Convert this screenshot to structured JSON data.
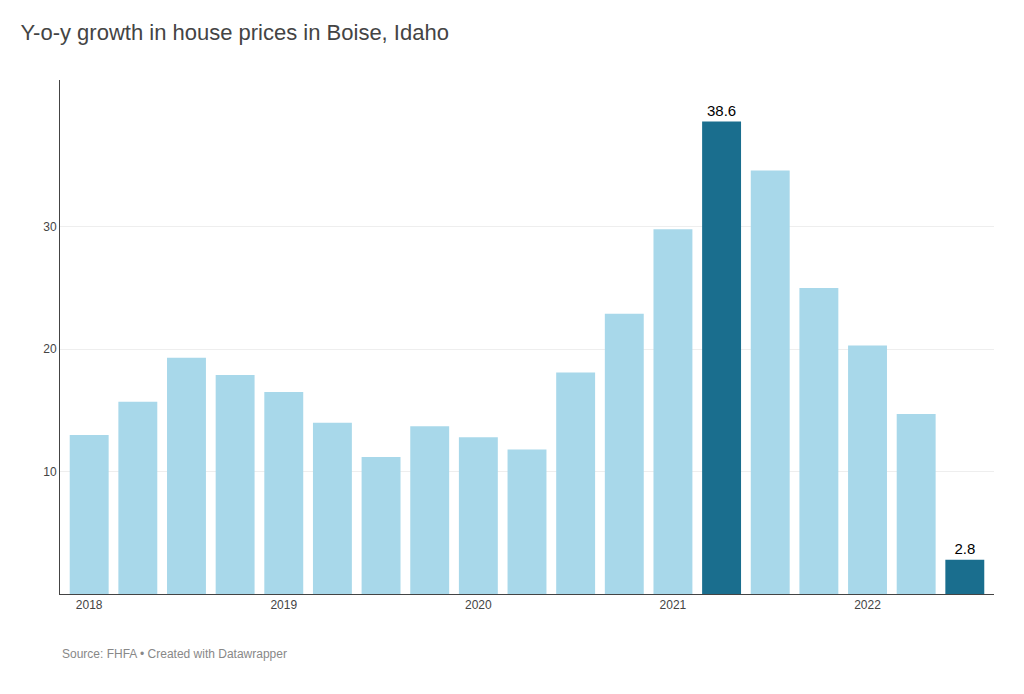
{
  "chart_data": {
    "type": "bar",
    "title": "Y-o-y growth in house prices in Boise, Idaho",
    "annotations": [
      "Source: FHFA • Created with Datawrapper"
    ],
    "categories": [
      "2018",
      null,
      null,
      null,
      "2019",
      null,
      null,
      null,
      "2020",
      null,
      null,
      null,
      "2021",
      null,
      null,
      null,
      "2022",
      null,
      null
    ],
    "values": [
      13.0,
      15.7,
      19.3,
      17.9,
      16.5,
      14.0,
      11.2,
      13.7,
      12.8,
      11.8,
      18.1,
      22.9,
      29.8,
      38.6,
      34.6,
      25.0,
      20.3,
      14.7,
      2.8
    ],
    "colors": [
      "#a8d8ea",
      "#a8d8ea",
      "#a8d8ea",
      "#a8d8ea",
      "#a8d8ea",
      "#a8d8ea",
      "#a8d8ea",
      "#a8d8ea",
      "#a8d8ea",
      "#a8d8ea",
      "#a8d8ea",
      "#a8d8ea",
      "#a8d8ea",
      "#1a6e8e",
      "#a8d8ea",
      "#a8d8ea",
      "#a8d8ea",
      "#a8d8ea",
      "#1a6e8e"
    ],
    "data_labels": true,
    "value_labels": [
      null,
      null,
      null,
      null,
      null,
      null,
      null,
      null,
      null,
      null,
      null,
      null,
      null,
      "38.6",
      null,
      null,
      null,
      null,
      "2.8"
    ],
    "ylim": [
      0,
      42
    ],
    "yticks": [
      10,
      20,
      30
    ],
    "grid": true
  }
}
